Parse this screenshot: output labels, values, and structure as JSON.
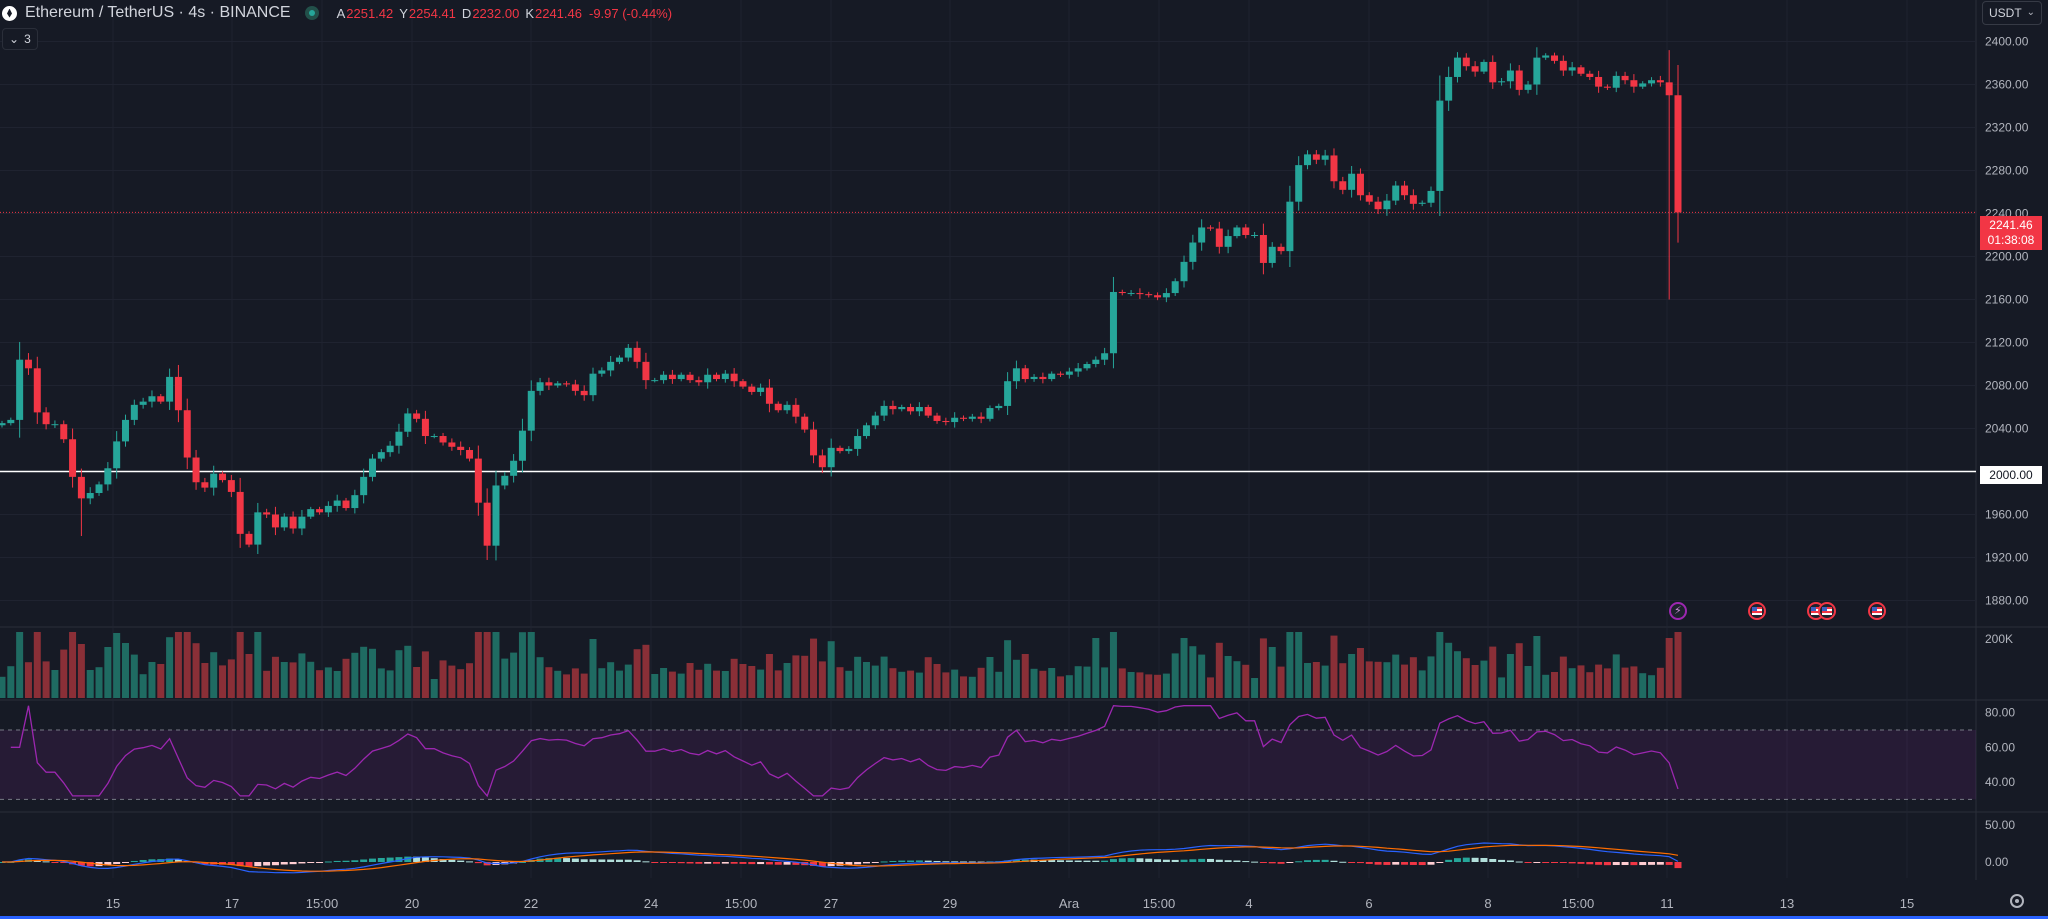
{
  "header": {
    "symbol": "Ethereum / TetherUS · 4s · BINANCE",
    "ohlc": [
      {
        "key": "A",
        "value": "2251.42"
      },
      {
        "key": "Y",
        "value": "2254.41"
      },
      {
        "key": "D",
        "value": "2232.00"
      },
      {
        "key": "K",
        "value": "2241.46"
      }
    ],
    "change": "-9.97 (-0.44%)",
    "indicator_toggle": "3",
    "currency": "USDT"
  },
  "badges": {
    "last_price": "2241.46",
    "countdown": "01:38:08",
    "level": "2000.00"
  },
  "colors": {
    "up": "#26a69a",
    "down": "#f23645",
    "rsi": "#9c27b0",
    "macd": "#2962ff",
    "signal": "#ff6d00",
    "background": "#161a25"
  },
  "chart_data": {
    "type": "candlestick",
    "x_labels": [
      "15",
      "17",
      "15:00",
      "20",
      "22",
      "24",
      "15:00",
      "27",
      "29",
      "Ara",
      "15:00",
      "4",
      "6",
      "8",
      "15:00",
      "11",
      "13",
      "15"
    ],
    "price_axis": {
      "ticks": [
        "2400.00",
        "2360.00",
        "2320.00",
        "2280.00",
        "2240.00",
        "2200.00",
        "2160.00",
        "2120.00",
        "2080.00",
        "2040.00",
        "2000.00",
        "1960.00",
        "1920.00",
        "1880.00"
      ],
      "ylim": [
        1860,
        2420
      ]
    },
    "candles_close": [
      2045,
      2048,
      2104,
      2096,
      2055,
      2044,
      2044,
      2030,
      1995,
      1975,
      1980,
      1988,
      2003,
      2028,
      2048,
      2062,
      2065,
      2070,
      2065,
      2088,
      2057,
      2013,
      1990,
      1985,
      1998,
      1992,
      1981,
      1942,
      1932,
      1962,
      1960,
      1948,
      1958,
      1947,
      1958,
      1965,
      1962,
      1968,
      1973,
      1966,
      1978,
      1995,
      2012,
      2018,
      2024,
      2037,
      2054,
      2049,
      2033,
      2033,
      2027,
      2023,
      2020,
      2012,
      1971,
      1931,
      1987,
      1996,
      2010,
      2038,
      2075,
      2083,
      2080,
      2082,
      2081,
      2075,
      2071,
      2091,
      2094,
      2102,
      2106,
      2115,
      2102,
      2085,
      2085,
      2090,
      2086,
      2090,
      2085,
      2083,
      2090,
      2086,
      2091,
      2084,
      2079,
      2074,
      2078,
      2063,
      2057,
      2062,
      2051,
      2039,
      2015,
      2004,
      2022,
      2019,
      2021,
      2033,
      2043,
      2052,
      2061,
      2058,
      2060,
      2056,
      2060,
      2052,
      2047,
      2046,
      2050,
      2049,
      2051,
      2049,
      2059,
      2061,
      2084,
      2096,
      2086,
      2088,
      2086,
      2091,
      2090,
      2093,
      2096,
      2100,
      2104,
      2110,
      2167,
      2166,
      2166,
      2165,
      2164,
      2162,
      2166,
      2177,
      2195,
      2213,
      2227,
      2226,
      2209,
      2219,
      2227,
      2220,
      2220,
      2194,
      2209,
      2205,
      2251,
      2285,
      2295,
      2290,
      2294,
      2270,
      2262,
      2277,
      2257,
      2251,
      2244,
      2252,
      2266,
      2257,
      2249,
      2250,
      2261,
      2345,
      2367,
      2385,
      2377,
      2372,
      2381,
      2362,
      2363,
      2373,
      2355,
      2360,
      2385,
      2387,
      2382,
      2373,
      2376,
      2370,
      2367,
      2358,
      2357,
      2368,
      2364,
      2358,
      2361,
      2364,
      2362,
      2350,
      2241
    ],
    "volume_axis": {
      "ticks": [
        "200K"
      ]
    },
    "rsi": {
      "levels": [
        70,
        30
      ],
      "ticks": [
        "80.00",
        "60.00",
        "40.00"
      ],
      "ylim": [
        25,
        85
      ],
      "last": 36
    },
    "macd": {
      "ticks": [
        "50.00",
        "0.00"
      ]
    },
    "horizontal_line": 2000
  }
}
